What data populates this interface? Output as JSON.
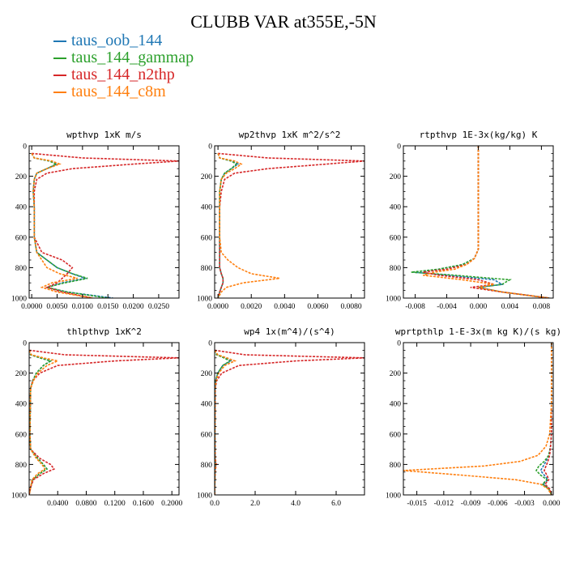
{
  "title": "CLUBB VAR at355E,-5N",
  "legend": [
    {
      "label": "taus_oob_144",
      "color": "#1f77b4"
    },
    {
      "label": "taus_144_gammap",
      "color": "#2ca02c"
    },
    {
      "label": "taus_144_n2thp",
      "color": "#d62728"
    },
    {
      "label": "taus_144_c8m",
      "color": "#ff7f0e"
    }
  ],
  "chart_data": [
    {
      "type": "line",
      "title": "wpthvp   1xK m/s",
      "xlim": [
        -0.0005,
        0.029
      ],
      "ylim": [
        1000,
        0
      ],
      "xticks": [
        0,
        0.005,
        0.01,
        0.015,
        0.02,
        0.025
      ],
      "xticklabels": [
        "0.0000",
        "0.0050",
        "0.0100",
        "0.0150",
        "0.0200",
        "0.0250"
      ],
      "yticks": [
        0,
        200,
        400,
        600,
        800,
        1000
      ],
      "yticklabels": [
        "0",
        "200",
        "400",
        "600",
        "800",
        "1000"
      ],
      "y": [
        50,
        80,
        100,
        120,
        150,
        180,
        220,
        300,
        400,
        600,
        700,
        750,
        800,
        840,
        870,
        900,
        930,
        960,
        1000
      ],
      "series": [
        {
          "name": "taus_oob_144",
          "values": [
            0,
            0.0005,
            0.0035,
            0.005,
            0.003,
            0.001,
            0.0005,
            0.0003,
            0.0005,
            0.0005,
            0.001,
            0.003,
            0.005,
            0.008,
            0.0105,
            0.006,
            0.003,
            0.007,
            0.016
          ]
        },
        {
          "name": "taus_144_gammap",
          "values": [
            0,
            0.0005,
            0.0035,
            0.0048,
            0.003,
            0.001,
            0.0005,
            0.0003,
            0.0005,
            0.0005,
            0.001,
            0.003,
            0.005,
            0.008,
            0.011,
            0.0065,
            0.003,
            0.007,
            0.015
          ]
        },
        {
          "name": "taus_144_n2thp",
          "values": [
            0,
            0.01,
            0.029,
            0.02,
            0.008,
            0.003,
            0.001,
            0.0005,
            0.0005,
            0.0005,
            0.002,
            0.006,
            0.008,
            0.007,
            0.006,
            0.005,
            0.003,
            0.006,
            0.012
          ]
        },
        {
          "name": "taus_144_c8m",
          "values": [
            0,
            0.0005,
            0.004,
            0.0055,
            0.003,
            0.001,
            0.0005,
            0.0003,
            0.0005,
            0.0005,
            0.001,
            0.002,
            0.003,
            0.0055,
            0.009,
            0.004,
            0.002,
            0.005,
            0.012
          ]
        }
      ]
    },
    {
      "type": "line",
      "title": "wp2thvp   1xK m^2/s^2",
      "xlim": [
        -0.0002,
        0.0088
      ],
      "ylim": [
        1000,
        0
      ],
      "xticks": [
        0,
        0.002,
        0.004,
        0.006,
        0.008
      ],
      "xticklabels": [
        "0.0000",
        "0.0020",
        "0.0040",
        "0.0060",
        "0.0080"
      ],
      "yticks": [
        0,
        200,
        400,
        600,
        800,
        1000
      ],
      "yticklabels": [
        "0",
        "200",
        "400",
        "600",
        "800",
        "1000"
      ],
      "y": [
        50,
        80,
        100,
        120,
        150,
        180,
        220,
        300,
        400,
        600,
        700,
        750,
        800,
        840,
        870,
        900,
        930,
        960,
        1000
      ],
      "series": [
        {
          "name": "taus_oob_144",
          "values": [
            0,
            0.0001,
            0.0008,
            0.0012,
            0.0008,
            0.0004,
            0.0002,
            0.0001,
            0.0001,
            0.0001,
            0.0001,
            0.0001,
            0.0001,
            0.0002,
            0.0003,
            0.0003,
            0.0002,
            0.0001,
            0
          ]
        },
        {
          "name": "taus_144_gammap",
          "values": [
            0,
            0.0001,
            0.0008,
            0.0011,
            0.0008,
            0.0004,
            0.0002,
            0.0001,
            0.0001,
            0.0001,
            0.0001,
            0.0001,
            0.0001,
            0.0002,
            0.0003,
            0.0003,
            0.0002,
            0.0001,
            0
          ]
        },
        {
          "name": "taus_144_n2thp",
          "values": [
            0,
            0.003,
            0.0088,
            0.0065,
            0.003,
            0.001,
            0.0004,
            0.0002,
            0.0001,
            0.0001,
            0.0001,
            0.0001,
            0.0001,
            0.0002,
            0.0003,
            0.0003,
            0.0002,
            0.0001,
            0
          ]
        },
        {
          "name": "taus_144_c8m",
          "values": [
            0,
            0.0001,
            0.001,
            0.0014,
            0.001,
            0.0005,
            0.0002,
            0.0001,
            0.0001,
            0.0001,
            0.0002,
            0.0006,
            0.0012,
            0.002,
            0.0037,
            0.0015,
            0.0005,
            0.0002,
            0
          ]
        }
      ]
    },
    {
      "type": "line",
      "title": "rtpthvp   1E-3x(kg/kg) K",
      "xlim": [
        -0.0095,
        0.0095
      ],
      "ylim": [
        1000,
        0
      ],
      "xticks": [
        -0.008,
        -0.004,
        0,
        0.004,
        0.008
      ],
      "xticklabels": [
        "-0.008",
        "-0.004",
        "0.000",
        "0.004",
        "0.008"
      ],
      "yticks": [
        0,
        200,
        400,
        600,
        800,
        1000
      ],
      "yticklabels": [
        "0",
        "200",
        "400",
        "600",
        "800",
        "1000"
      ],
      "y": [
        0,
        200,
        400,
        600,
        680,
        740,
        780,
        810,
        830,
        850,
        880,
        910,
        930,
        960,
        1000
      ],
      "series": [
        {
          "name": "taus_oob_144",
          "values": [
            0,
            0,
            0,
            0,
            0,
            -0.0005,
            -0.002,
            -0.005,
            -0.0082,
            -0.004,
            0.002,
            0.003,
            0.0,
            0.003,
            0.009
          ]
        },
        {
          "name": "taus_144_gammap",
          "values": [
            0,
            0,
            0,
            0,
            0,
            -0.0005,
            -0.002,
            -0.005,
            -0.0085,
            -0.003,
            0.004,
            0.003,
            0.0,
            0.003,
            0.009
          ]
        },
        {
          "name": "taus_144_n2thp",
          "values": [
            0,
            0,
            0,
            0,
            0,
            -0.0005,
            -0.0015,
            -0.004,
            -0.007,
            -0.005,
            0.0,
            0.002,
            -0.001,
            0.003,
            0.009
          ]
        },
        {
          "name": "taus_144_c8m",
          "values": [
            0,
            0,
            0,
            0,
            0,
            -0.0005,
            -0.0015,
            -0.003,
            -0.0055,
            -0.007,
            -0.002,
            0.002,
            0.0,
            0.003,
            0.009
          ]
        }
      ]
    },
    {
      "type": "line",
      "title": "thlpthvp   1xK^2",
      "xlim": [
        0,
        0.21
      ],
      "ylim": [
        1000,
        0
      ],
      "xticks": [
        0.04,
        0.08,
        0.12,
        0.16,
        0.2
      ],
      "xticklabels": [
        "0.0400",
        "0.0800",
        "0.1200",
        "0.1600",
        "0.2000"
      ],
      "yticks": [
        0,
        200,
        400,
        600,
        800,
        1000
      ],
      "yticklabels": [
        "0",
        "200",
        "400",
        "600",
        "800",
        "1000"
      ],
      "y": [
        50,
        80,
        100,
        120,
        150,
        200,
        250,
        300,
        600,
        700,
        760,
        800,
        830,
        860,
        900,
        950,
        1000
      ],
      "series": [
        {
          "name": "taus_oob_144",
          "values": [
            0,
            0.002,
            0.015,
            0.03,
            0.02,
            0.01,
            0.005,
            0.002,
            0.001,
            0.002,
            0.012,
            0.02,
            0.025,
            0.015,
            0.005,
            0.002,
            0
          ]
        },
        {
          "name": "taus_144_gammap",
          "values": [
            0,
            0.002,
            0.015,
            0.03,
            0.02,
            0.01,
            0.005,
            0.002,
            0.001,
            0.002,
            0.012,
            0.02,
            0.025,
            0.015,
            0.005,
            0.002,
            0
          ]
        },
        {
          "name": "taus_144_n2thp",
          "values": [
            0,
            0.05,
            0.21,
            0.12,
            0.04,
            0.015,
            0.005,
            0.002,
            0.001,
            0.002,
            0.015,
            0.03,
            0.035,
            0.02,
            0.006,
            0.002,
            0
          ]
        },
        {
          "name": "taus_144_c8m",
          "values": [
            0,
            0.003,
            0.02,
            0.04,
            0.025,
            0.012,
            0.006,
            0.002,
            0.001,
            0.002,
            0.01,
            0.018,
            0.022,
            0.012,
            0.004,
            0.002,
            0
          ]
        }
      ]
    },
    {
      "type": "line",
      "title": "wp4   1x(m^4)/(s^4)",
      "xlim": [
        0,
        7.4
      ],
      "ylim": [
        1000,
        0
      ],
      "xticks": [
        0,
        2,
        4,
        6
      ],
      "xticklabels": [
        "0.0",
        "2.0",
        "4.0",
        "6.0"
      ],
      "yticks": [
        0,
        200,
        400,
        600,
        800,
        1000
      ],
      "yticklabels": [
        "0",
        "200",
        "400",
        "600",
        "800",
        "1000"
      ],
      "y": [
        50,
        80,
        100,
        120,
        150,
        200,
        250,
        300,
        600,
        760,
        800,
        840,
        900,
        1000
      ],
      "series": [
        {
          "name": "taus_oob_144",
          "values": [
            0,
            0.1,
            0.5,
            0.8,
            0.4,
            0.15,
            0.05,
            0.02,
            0.01,
            0.02,
            0.05,
            0.02,
            0.01,
            0
          ]
        },
        {
          "name": "taus_144_gammap",
          "values": [
            0,
            0.1,
            0.45,
            0.75,
            0.4,
            0.15,
            0.05,
            0.02,
            0.01,
            0.02,
            0.05,
            0.02,
            0.01,
            0
          ]
        },
        {
          "name": "taus_144_n2thp",
          "values": [
            0,
            1.5,
            7.4,
            4.0,
            1.2,
            0.35,
            0.1,
            0.03,
            0.01,
            0.03,
            0.08,
            0.03,
            0.01,
            0
          ]
        },
        {
          "name": "taus_144_c8m",
          "values": [
            0,
            0.15,
            0.6,
            1.0,
            0.5,
            0.2,
            0.07,
            0.02,
            0.01,
            0.02,
            0.05,
            0.02,
            0.01,
            0
          ]
        }
      ]
    },
    {
      "type": "line",
      "title": "wprtpthlp   1-E-3x(m kg K)/(s kg)",
      "xlim": [
        -0.0165,
        0.0002
      ],
      "ylim": [
        1000,
        0
      ],
      "xticks": [
        -0.015,
        -0.012,
        -0.009,
        -0.006,
        -0.003,
        0
      ],
      "xticklabels": [
        "-0.015",
        "-0.012",
        "-0.009",
        "-0.006",
        "-0.003",
        "0.000"
      ],
      "yticks": [
        0,
        200,
        400,
        600,
        800,
        1000
      ],
      "yticklabels": [
        "0",
        "200",
        "400",
        "600",
        "800",
        "1000"
      ],
      "y": [
        0,
        400,
        600,
        680,
        740,
        780,
        810,
        840,
        870,
        900,
        930,
        960,
        1000
      ],
      "series": [
        {
          "name": "taus_oob_144",
          "values": [
            0,
            0,
            0,
            -0.0001,
            -0.0003,
            -0.0006,
            -0.0009,
            -0.0012,
            -0.0008,
            -0.0004,
            -0.0009,
            -0.0003,
            0
          ]
        },
        {
          "name": "taus_144_gammap",
          "values": [
            0,
            0,
            0,
            -0.0001,
            -0.0003,
            -0.0008,
            -0.0014,
            -0.0017,
            -0.0012,
            -0.0005,
            -0.001,
            -0.0003,
            0
          ]
        },
        {
          "name": "taus_144_n2thp",
          "values": [
            0,
            0,
            0,
            -0.0001,
            -0.0002,
            -0.0004,
            -0.0006,
            -0.0008,
            -0.0005,
            -0.0003,
            -0.0007,
            -0.0002,
            0
          ]
        },
        {
          "name": "taus_144_c8m",
          "values": [
            0,
            0,
            -0.0002,
            -0.0006,
            -0.0015,
            -0.0035,
            -0.0075,
            -0.0165,
            -0.01,
            -0.004,
            -0.0012,
            -0.0004,
            0
          ]
        }
      ]
    }
  ]
}
